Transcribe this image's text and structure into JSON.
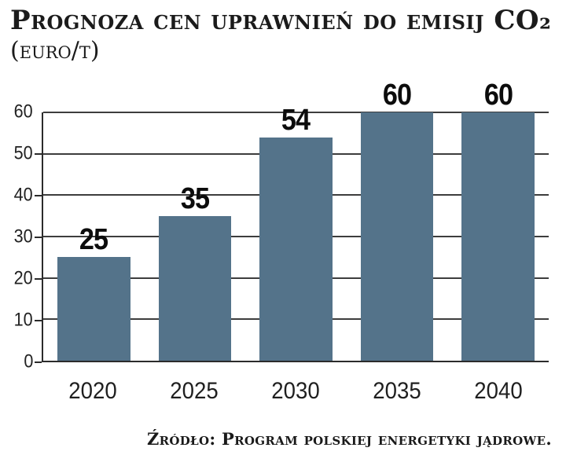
{
  "chart_data": {
    "type": "bar",
    "title": "Prognoza cen uprawnień do emisij CO₂",
    "subtitle": "(euro/t)",
    "categories": [
      "2020",
      "2025",
      "2030",
      "2035",
      "2040"
    ],
    "values": [
      25,
      35,
      54,
      60,
      60
    ],
    "xlabel": "",
    "ylabel": "",
    "ylim": [
      0,
      60
    ],
    "yticks": [
      0,
      10,
      20,
      30,
      40,
      50,
      60
    ],
    "grid": "horizontal",
    "legend_position": "none",
    "bar_color": "#54738a",
    "axis_color": "#2b2b2b",
    "gridline_color": "#3d3d3d",
    "text_color": "#1b1b1b",
    "background_color": "#ffffff",
    "source": "Źródło: Program polskiej energetyki jądrowe."
  }
}
